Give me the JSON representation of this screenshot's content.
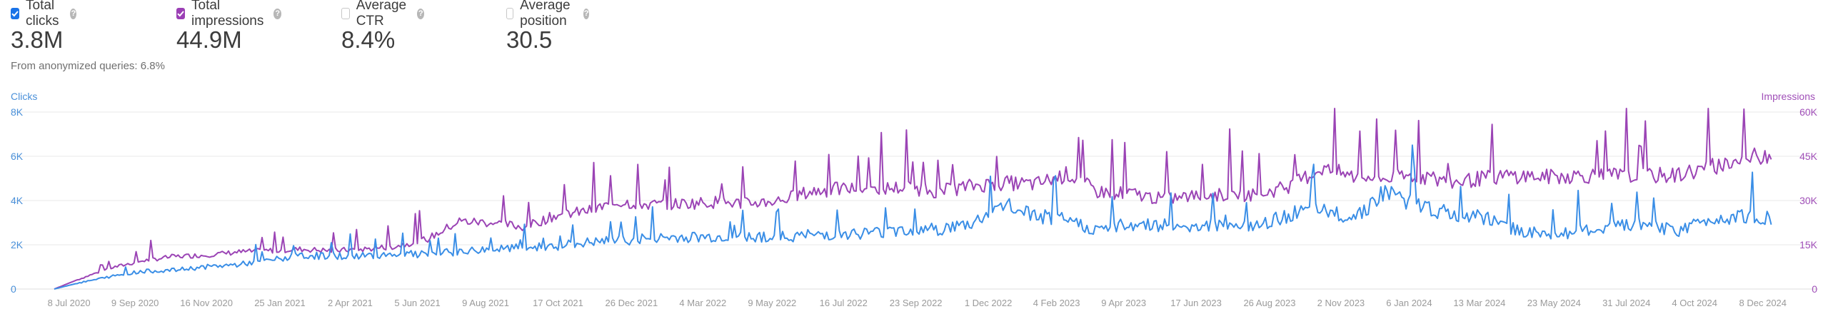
{
  "metrics": [
    {
      "label": "Total clicks",
      "value": "3.8M",
      "checked": true,
      "color": "#1a73e8"
    },
    {
      "label": "Total impressions",
      "value": "44.9M",
      "checked": true,
      "color": "#9b3fb5"
    },
    {
      "label": "Average CTR",
      "value": "8.4%",
      "checked": false,
      "color": "#c8c8c8"
    },
    {
      "label": "Average position",
      "value": "30.5",
      "checked": false,
      "color": "#c8c8c8"
    }
  ],
  "note": "From anonymized queries: 6.8%",
  "chart_data": {
    "type": "line",
    "left_axis_label": "Clicks",
    "right_axis_label": "Impressions",
    "left_ticks": [
      "0",
      "2K",
      "4K",
      "6K",
      "8K"
    ],
    "right_ticks": [
      "0",
      "15K",
      "30K",
      "45K",
      "60K"
    ],
    "left_range": [
      0,
      8000
    ],
    "right_range": [
      0,
      60000
    ],
    "x_range": [
      "2020-06-24",
      "2024-12-17"
    ],
    "x_ticks": [
      "8 Jul 2020",
      "9 Sep 2020",
      "16 Nov 2020",
      "25 Jan 2021",
      "2 Apr 2021",
      "5 Jun 2021",
      "9 Aug 2021",
      "17 Oct 2021",
      "26 Dec 2021",
      "4 Mar 2022",
      "9 May 2022",
      "16 Jul 2022",
      "23 Sep 2022",
      "1 Dec 2022",
      "4 Feb 2023",
      "9 Apr 2023",
      "17 Jun 2023",
      "26 Aug 2023",
      "2 Nov 2023",
      "6 Jan 2024",
      "13 Mar 2024",
      "23 May 2024",
      "31 Jul 2024",
      "4 Oct 2024",
      "8 Dec 2024"
    ],
    "grid": true,
    "colors": {
      "clicks": "#3a8ee6",
      "impressions": "#9b44b5",
      "grid": "#e8e8e8",
      "tick_left": "#4a90d9",
      "tick_right": "#a04fb8",
      "tick_x": "#9a9a9a"
    },
    "series": [
      {
        "name": "Total clicks",
        "axis": "left",
        "x": [
          "2020-06-24",
          "2020-07-15",
          "2020-08-15",
          "2020-09-15",
          "2020-10-15",
          "2020-11-15",
          "2020-12-15",
          "2021-01-15",
          "2021-02-15",
          "2021-03-15",
          "2021-04-15",
          "2021-05-15",
          "2021-06-15",
          "2021-07-15",
          "2021-08-15",
          "2021-09-15",
          "2021-10-15",
          "2021-11-15",
          "2021-12-15",
          "2022-01-15",
          "2022-02-15",
          "2022-03-15",
          "2022-04-15",
          "2022-05-15",
          "2022-06-15",
          "2022-07-15",
          "2022-08-15",
          "2022-09-15",
          "2022-10-15",
          "2022-11-15",
          "2022-12-15",
          "2023-01-15",
          "2023-02-15",
          "2023-03-15",
          "2023-04-15",
          "2023-05-15",
          "2023-06-15",
          "2023-07-15",
          "2023-08-15",
          "2023-09-15",
          "2023-10-15",
          "2023-11-15",
          "2023-12-15",
          "2024-01-15",
          "2024-02-15",
          "2024-03-15",
          "2024-04-15",
          "2024-05-15",
          "2024-06-15",
          "2024-07-15",
          "2024-08-15",
          "2024-09-15",
          "2024-10-15",
          "2024-11-15",
          "2024-12-15"
        ],
        "values": [
          0,
          250,
          550,
          800,
          850,
          1000,
          1100,
          1300,
          1500,
          1500,
          1500,
          1600,
          1550,
          1700,
          1800,
          1850,
          1950,
          2100,
          2200,
          2300,
          2350,
          2350,
          2400,
          2350,
          2450,
          2500,
          2550,
          2700,
          2700,
          2950,
          3800,
          3300,
          3100,
          2650,
          2950,
          2900,
          2850,
          2950,
          2800,
          3400,
          3500,
          3300,
          4400,
          3800,
          3350,
          3250,
          2700,
          2450,
          2600,
          2750,
          3000,
          2600,
          3100,
          3350,
          3250
        ]
      },
      {
        "name": "Total impressions",
        "axis": "right",
        "x": [
          "2020-06-24",
          "2020-07-15",
          "2020-08-15",
          "2020-09-15",
          "2020-10-15",
          "2020-11-15",
          "2020-12-15",
          "2021-01-15",
          "2021-02-15",
          "2021-03-15",
          "2021-04-15",
          "2021-05-15",
          "2021-06-15",
          "2021-07-15",
          "2021-08-15",
          "2021-09-15",
          "2021-10-15",
          "2021-11-15",
          "2021-12-15",
          "2022-01-15",
          "2022-02-15",
          "2022-03-15",
          "2022-04-15",
          "2022-05-15",
          "2022-06-15",
          "2022-07-15",
          "2022-08-15",
          "2022-09-15",
          "2022-10-15",
          "2022-11-15",
          "2022-12-15",
          "2023-01-15",
          "2023-02-15",
          "2023-03-15",
          "2023-04-15",
          "2023-05-15",
          "2023-06-15",
          "2023-07-15",
          "2023-08-15",
          "2023-09-15",
          "2023-10-15",
          "2023-11-15",
          "2023-12-15",
          "2024-01-15",
          "2024-02-15",
          "2024-03-15",
          "2024-04-15",
          "2024-05-15",
          "2024-06-15",
          "2024-07-15",
          "2024-08-15",
          "2024-09-15",
          "2024-10-15",
          "2024-11-15",
          "2024-12-15"
        ],
        "values": [
          0,
          3000,
          7000,
          9500,
          11000,
          11500,
          12500,
          13000,
          13500,
          13000,
          13500,
          14500,
          17000,
          23000,
          22500,
          21000,
          25000,
          26500,
          29500,
          28500,
          29000,
          29500,
          29000,
          30000,
          33000,
          34000,
          34000,
          34500,
          33000,
          35000,
          36000,
          35500,
          39000,
          33000,
          32500,
          30500,
          31500,
          32000,
          32000,
          35000,
          41000,
          38000,
          37500,
          38500,
          36000,
          37500,
          38500,
          38000,
          38500,
          38500,
          38500,
          38500,
          41000,
          43500,
          46000
        ]
      }
    ]
  }
}
